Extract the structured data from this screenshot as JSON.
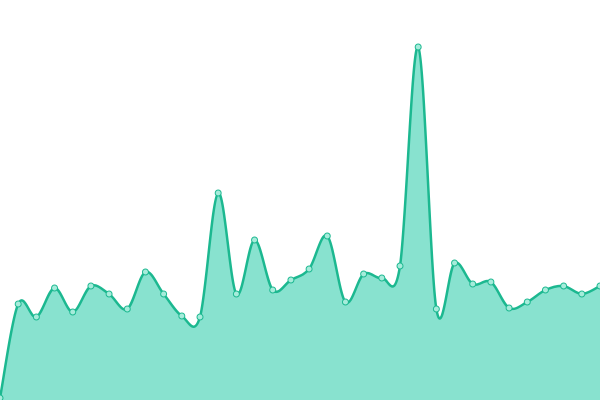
{
  "chart_data": {
    "type": "area",
    "values": [
      2,
      96,
      83,
      112,
      88,
      114,
      106,
      91,
      128,
      106,
      84,
      83,
      207,
      106,
      160,
      110,
      120,
      131,
      164,
      98,
      126,
      122,
      134,
      353,
      91,
      137,
      116,
      118,
      92,
      98,
      110,
      114,
      106,
      114
    ],
    "ylim": [
      0,
      400
    ],
    "color": "#1cb890",
    "fill": "#88e2cf",
    "marker_fill": "#a6ecdb"
  }
}
